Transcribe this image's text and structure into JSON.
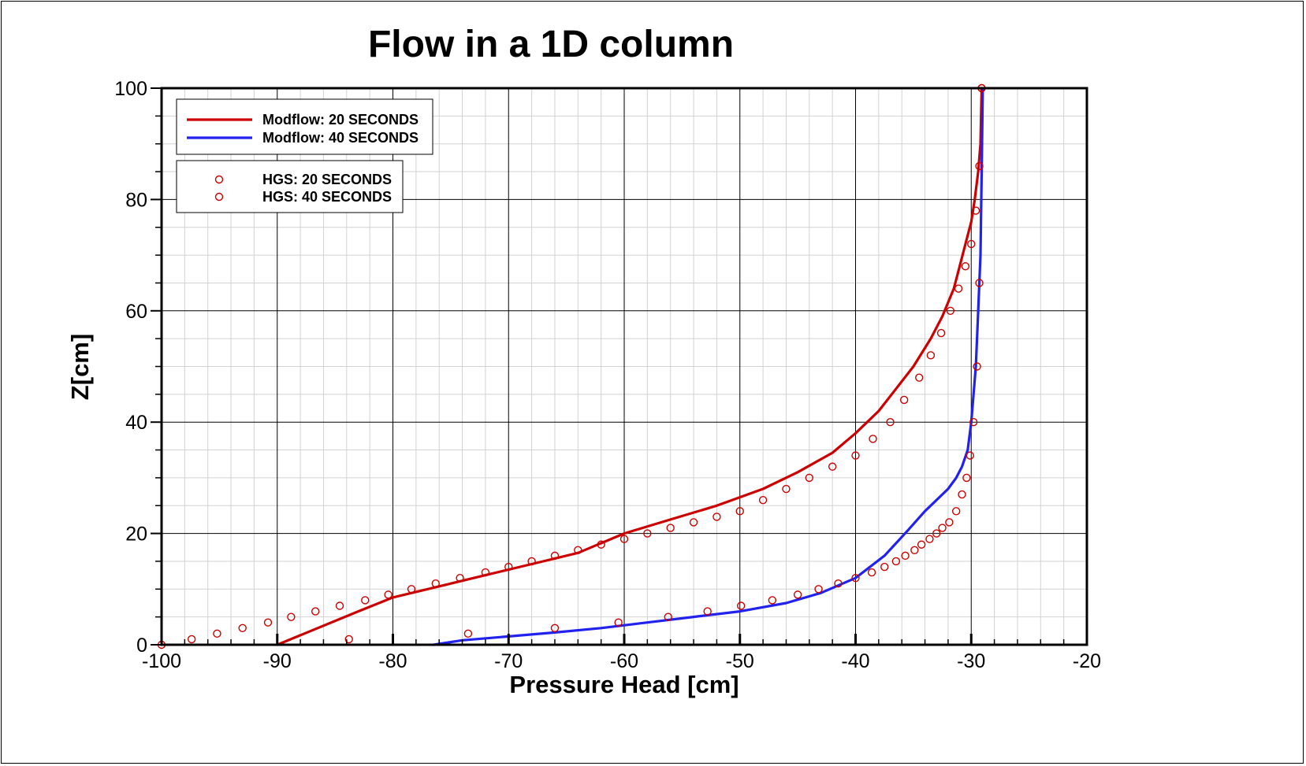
{
  "chart_data": {
    "type": "line",
    "title": "Flow in a 1D column",
    "xlabel": "Pressure Head [cm]",
    "ylabel": "Z[cm]",
    "xlim": [
      -100,
      -20
    ],
    "ylim": [
      0,
      100
    ],
    "xticks": [
      "-100",
      "-90",
      "-80",
      "-70",
      "-60",
      "-50",
      "-40",
      "-30",
      "-20"
    ],
    "yticks": [
      "0",
      "20",
      "40",
      "60",
      "80",
      "100"
    ],
    "grid": true,
    "legend_position": "top-left",
    "series": [
      {
        "name": "Modflow: 20 SECONDS",
        "style": "line",
        "color": "#cc0000",
        "x": [
          -90,
          -86.5,
          -83,
          -80,
          -76,
          -72,
          -68,
          -64,
          -60,
          -56,
          -52,
          -48,
          -45,
          -42,
          -40,
          -38,
          -36.5,
          -35,
          -33.5,
          -32.5,
          -31.5,
          -31,
          -30.5,
          -30,
          -29.7,
          -29.4,
          -29.2,
          -29.1
        ],
        "y": [
          0,
          3,
          6,
          8.5,
          10.5,
          12.5,
          14.5,
          16.5,
          20,
          22.5,
          25,
          28,
          31,
          34.5,
          38,
          42,
          46,
          50,
          55,
          59,
          64,
          68,
          72,
          76,
          80,
          85,
          90,
          100
        ]
      },
      {
        "name": "Modflow: 40 SECONDS",
        "style": "line",
        "color": "#2222ee",
        "x": [
          -76.5,
          -74,
          -70,
          -66,
          -62,
          -58,
          -54,
          -50,
          -46,
          -43,
          -40,
          -37.5,
          -35.5,
          -34,
          -33,
          -32,
          -31.3,
          -30.8,
          -30.3,
          -30,
          -29.8,
          -29.6,
          -29.4,
          -29.2,
          -29.1,
          -29
        ],
        "y": [
          0,
          0.8,
          1.5,
          2.2,
          3,
          4,
          5,
          6,
          7.5,
          9.3,
          12,
          16,
          20.5,
          24,
          26,
          28,
          30,
          32,
          35,
          40,
          45,
          50,
          60,
          70,
          85,
          100
        ]
      },
      {
        "name": "HGS: 20 SECONDS",
        "style": "markers",
        "color": "#cc0000",
        "x": [
          -100,
          -97.4,
          -95.2,
          -93,
          -90.8,
          -88.8,
          -86.7,
          -84.6,
          -82.4,
          -80.4,
          -78.4,
          -76.3,
          -74.2,
          -72,
          -70,
          -68,
          -66,
          -64,
          -62,
          -60,
          -58,
          -56,
          -54,
          -52,
          -50,
          -48,
          -46,
          -44,
          -42,
          -40,
          -38.5,
          -37,
          -35.8,
          -34.5,
          -33.5,
          -32.6,
          -31.8,
          -31.1,
          -30.5,
          -30,
          -29.6,
          -29.3,
          -29.1
        ],
        "y": [
          0,
          1,
          2,
          3,
          4,
          5,
          6,
          7,
          8,
          9,
          10,
          11,
          12,
          13,
          14,
          15,
          16,
          17,
          18,
          19,
          20,
          21,
          22,
          23,
          24,
          26,
          28,
          30,
          32,
          34,
          37,
          40,
          44,
          48,
          52,
          56,
          60,
          64,
          68,
          72,
          78,
          86,
          100
        ]
      },
      {
        "name": "HGS: 40 SECONDS",
        "style": "markers",
        "color": "#cc0000",
        "x": [
          -83.8,
          -73.5,
          -66,
          -60.5,
          -56.2,
          -52.8,
          -49.9,
          -47.2,
          -45,
          -43.2,
          -41.5,
          -40,
          -38.6,
          -37.5,
          -36.5,
          -35.7,
          -34.9,
          -34.3,
          -33.6,
          -33,
          -32.5,
          -31.9,
          -31.3,
          -30.8,
          -30.4,
          -30.1,
          -29.8,
          -29.5,
          -29.3,
          -29.1
        ],
        "y": [
          1,
          2,
          3,
          4,
          5,
          6,
          7,
          8,
          9,
          10,
          11,
          12,
          13,
          14,
          15,
          16,
          17,
          18,
          19,
          20,
          21,
          22,
          24,
          27,
          30,
          34,
          40,
          50,
          65,
          100
        ]
      }
    ]
  }
}
